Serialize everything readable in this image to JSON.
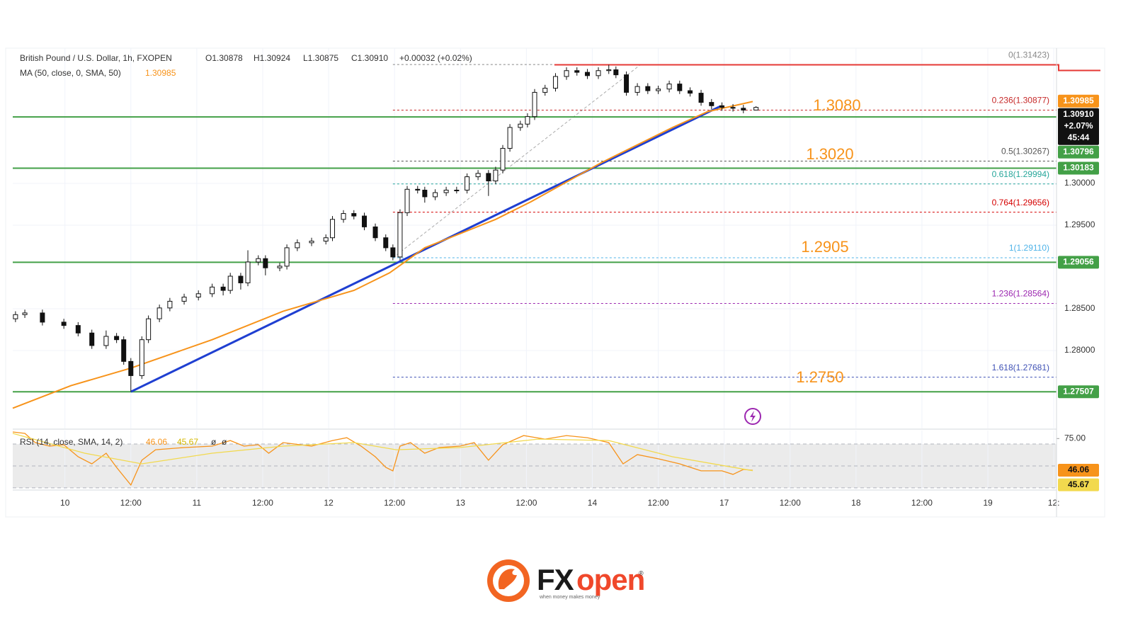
{
  "chart_data": {
    "type": "candlestick",
    "title": "British Pound / U.S. Dollar, 1h, FXOPEN",
    "ohlc": [
      "O1.30878",
      "H1.30924",
      "L1.30875",
      "C1.30910",
      "+0.00032 (+0.02%)"
    ],
    "x": [
      0.5,
      2.2,
      5.4,
      9.3,
      11.9,
      14.4,
      17.0,
      18.9,
      20.2,
      21.5,
      23.5,
      24.7,
      26.7,
      28.6,
      31.2,
      33.8,
      36.3,
      38.3,
      39.6,
      41.5,
      42.8,
      44.7,
      46.0,
      48.6,
      49.9,
      51.8,
      54.4,
      57.0,
      58.2,
      60.2,
      62.1,
      64.0,
      66.0,
      67.9,
      69.2,
      70.5,
      71.8,
      73.7,
      75.0,
      76.9,
      78.9,
      80.8,
      82.7,
      84.7,
      86.6,
      87.9,
      89.2,
      90.5,
      92.4,
      93.7,
      95.0,
      96.9,
      98.8,
      100.8,
      102.7,
      104.6,
      106.6,
      108.5,
      109.8,
      111.7,
      113.7,
      115.6,
      117.5,
      119.5,
      121.4,
      123.3,
      125.3,
      127.2,
      129.1,
      131.1,
      133.0,
      135.3
    ],
    "open": [
      1.2838,
      1.2843,
      1.2845,
      1.2834,
      1.283,
      1.2821,
      1.2806,
      1.2817,
      1.2813,
      1.2787,
      1.277,
      1.2813,
      1.2838,
      1.2851,
      1.2859,
      1.2864,
      1.2868,
      1.2876,
      1.2872,
      1.2889,
      1.2881,
      1.2906,
      1.291,
      1.2899,
      1.2901,
      1.2923,
      1.2929,
      1.2931,
      1.2935,
      1.2957,
      1.2964,
      1.2961,
      1.2948,
      1.2935,
      1.2923,
      1.2912,
      1.2965,
      1.2993,
      1.2992,
      1.2984,
      1.2989,
      1.2992,
      1.2992,
      1.3008,
      1.3012,
      1.3003,
      1.3016,
      1.3042,
      1.3067,
      1.3071,
      1.308,
      1.3109,
      1.3114,
      1.3128,
      1.3135,
      1.3133,
      1.3129,
      1.3135,
      1.3136,
      1.313,
      1.3109,
      1.3116,
      1.3111,
      1.3113,
      1.3119,
      1.3111,
      1.3108,
      1.3097,
      1.3093,
      1.3091,
      1.309,
      1.30878
    ],
    "high": [
      1.2847,
      1.2849,
      1.2849,
      1.2838,
      1.2834,
      1.2825,
      1.2824,
      1.2821,
      1.2817,
      1.2791,
      1.2817,
      1.2842,
      1.2855,
      1.2863,
      1.2868,
      1.2872,
      1.288,
      1.288,
      1.2893,
      1.2893,
      1.292,
      1.2914,
      1.2914,
      1.2905,
      1.2927,
      1.2933,
      1.2935,
      1.2939,
      1.2961,
      1.2968,
      1.2968,
      1.2965,
      1.2952,
      1.2939,
      1.2927,
      1.2969,
      1.2997,
      1.2997,
      1.2996,
      1.2993,
      1.2996,
      1.2996,
      1.3012,
      1.3016,
      1.3016,
      1.302,
      1.3046,
      1.3071,
      1.3075,
      1.3084,
      1.3113,
      1.3118,
      1.3132,
      1.3139,
      1.3139,
      1.3137,
      1.3139,
      1.3142,
      1.314,
      1.3134,
      1.312,
      1.312,
      1.3117,
      1.3123,
      1.3123,
      1.3115,
      1.3112,
      1.3101,
      1.3097,
      1.3095,
      1.3094,
      1.30924
    ],
    "low": [
      1.2834,
      1.2839,
      1.283,
      1.2826,
      1.2817,
      1.2802,
      1.2802,
      1.2809,
      1.2783,
      1.2751,
      1.2766,
      1.2809,
      1.2834,
      1.2847,
      1.2855,
      1.286,
      1.2864,
      1.2866,
      1.2868,
      1.2873,
      1.2877,
      1.2902,
      1.289,
      1.2895,
      1.2897,
      1.2919,
      1.2925,
      1.2927,
      1.2931,
      1.2953,
      1.2957,
      1.2944,
      1.2931,
      1.2919,
      1.2908,
      1.2908,
      1.2961,
      1.2988,
      1.2977,
      1.298,
      1.2985,
      1.2988,
      1.2988,
      1.3004,
      1.2985,
      1.2999,
      1.3012,
      1.3038,
      1.3063,
      1.3067,
      1.3076,
      1.3105,
      1.311,
      1.3124,
      1.3129,
      1.3125,
      1.3125,
      1.3131,
      1.3126,
      1.3105,
      1.3105,
      1.3107,
      1.3107,
      1.3109,
      1.3107,
      1.3104,
      1.3093,
      1.3089,
      1.3087,
      1.3086,
      1.3084,
      1.30875
    ],
    "close": [
      1.2843,
      1.2845,
      1.2834,
      1.283,
      1.2821,
      1.2806,
      1.2817,
      1.2813,
      1.2787,
      1.277,
      1.2813,
      1.2838,
      1.2851,
      1.2859,
      1.2864,
      1.2868,
      1.2876,
      1.2872,
      1.2889,
      1.2881,
      1.2906,
      1.291,
      1.2899,
      1.2901,
      1.2923,
      1.2929,
      1.2931,
      1.2935,
      1.2957,
      1.2964,
      1.2961,
      1.2948,
      1.2935,
      1.2923,
      1.2912,
      1.2965,
      1.2993,
      1.2992,
      1.2984,
      1.2989,
      1.2992,
      1.2992,
      1.3008,
      1.3012,
      1.3003,
      1.3016,
      1.3042,
      1.3067,
      1.3071,
      1.308,
      1.3109,
      1.3114,
      1.3128,
      1.3135,
      1.3133,
      1.3129,
      1.3135,
      1.3136,
      1.313,
      1.3109,
      1.3116,
      1.3111,
      1.3113,
      1.3119,
      1.3111,
      1.3108,
      1.3097,
      1.3093,
      1.3091,
      1.309,
      1.30878,
      1.3091
    ],
    "up_color": "#ffffff",
    "down_color": "#111111",
    "xlim": [
      0,
      190
    ],
    "xticks": [
      {
        "value": 9.5,
        "label": "10"
      },
      {
        "value": 21.5,
        "label": "12:00"
      },
      {
        "value": 33.5,
        "label": "11"
      },
      {
        "value": 45.5,
        "label": "12:00"
      },
      {
        "value": 57.5,
        "label": "12"
      },
      {
        "value": 69.5,
        "label": "12:00"
      },
      {
        "value": 81.5,
        "label": "13"
      },
      {
        "value": 93.5,
        "label": "12:00"
      },
      {
        "value": 105.5,
        "label": "14"
      },
      {
        "value": 117.5,
        "label": "12:00"
      },
      {
        "value": 129.5,
        "label": "17"
      },
      {
        "value": 141.5,
        "label": "12:00"
      },
      {
        "value": 153.5,
        "label": "18"
      },
      {
        "value": 165.5,
        "label": "12:00"
      },
      {
        "value": 177.5,
        "label": "19"
      },
      {
        "value": 189.5,
        "label": "12:"
      }
    ],
    "ylim": [
      1.27068,
      1.31619
    ],
    "yticks": [
      {
        "value": 1.3,
        "label": "1.30000"
      },
      {
        "value": 1.295,
        "label": "1.29500"
      },
      {
        "value": 1.285,
        "label": "1.28500"
      },
      {
        "value": 1.28,
        "label": "1.28000"
      }
    ],
    "grid": true,
    "ma": {
      "name": "MA (50, close, 0, SMA, 50)",
      "color": "#f7931a",
      "x": [
        0,
        10.6,
        21.5,
        36.3,
        49.2,
        62.1,
        68.6,
        75.0,
        87.9,
        94.3,
        107.2,
        120.1,
        126.5,
        134.7
      ],
      "values": [
        1.2731,
        1.2758,
        1.2779,
        1.2813,
        1.2847,
        1.2872,
        1.2893,
        1.2923,
        1.2957,
        1.2978,
        1.3025,
        1.3067,
        1.3086,
        1.3098
      ],
      "last": {
        "value": 1.30985,
        "label": "1.30985"
      }
    },
    "last_price": {
      "value": 1.3091,
      "label": "1.30910",
      "change": "+2.07%",
      "countdown": "45:44"
    },
    "trendline": {
      "x": [
        21.5,
        128.7
      ],
      "y": [
        1.27507,
        1.3092
      ],
      "color": "#1f3fd1"
    },
    "resistance": {
      "x": 98.6,
      "value": 1.3142,
      "color": "#e53935"
    },
    "levels": {
      "color": "#43a047",
      "items": [
        {
          "value": 1.30796,
          "label": "1.30796"
        },
        {
          "value": 1.30183,
          "label": "1.30183"
        },
        {
          "value": 1.29056,
          "label": "1.29056"
        },
        {
          "value": 1.27507,
          "label": "1.27507"
        }
      ]
    },
    "annotations": {
      "color": "#f7931a",
      "items": [
        "1.3080",
        "1.3020",
        "1.2905",
        "1.2750"
      ]
    },
    "fibonacci": {
      "anchors": {
        "x": [
          69.2,
          114.3
        ],
        "y": [
          1.2911,
          1.31423
        ]
      },
      "levels": [
        {
          "value": 1.31423,
          "label": "0(1.31423)",
          "color": "#888888"
        },
        {
          "value": 1.30877,
          "label": "0.236(1.30877)",
          "color": "#c62828"
        },
        {
          "value": 1.30267,
          "label": "0.5(1.30267)",
          "color": "#555555"
        },
        {
          "value": 1.29994,
          "label": "0.618(1.29994)",
          "color": "#26a69a"
        },
        {
          "value": 1.29656,
          "label": "0.764(1.29656)",
          "color": "#d50000"
        },
        {
          "value": 1.2911,
          "label": "1(1.29110)",
          "color": "#4fb3e8"
        },
        {
          "value": 1.28564,
          "label": "1.236(1.28564)",
          "color": "#9c27b0"
        },
        {
          "value": 1.27681,
          "label": "1.618(1.27681)",
          "color": "#3f51b5"
        }
      ]
    },
    "rsi": {
      "name": "RSI (14, close, SMA, 14, 2)",
      "extras": [
        "ø",
        "ø"
      ],
      "ylim": [
        28,
        82.3
      ],
      "yticks": [
        {
          "value": 75,
          "label": "75.00"
        }
      ],
      "band": [
        30,
        70
      ],
      "midline": 50,
      "series": [
        {
          "name": "RSI",
          "color": "#f7931a",
          "x": [
            0,
            2.2,
            4.1,
            6.7,
            9.3,
            11.9,
            14.4,
            17.0,
            18.9,
            21.5,
            23.5,
            26.0,
            31.2,
            36.3,
            39.6,
            42.1,
            44.7,
            46.6,
            49.2,
            54.4,
            58.2,
            60.8,
            63.4,
            66.0,
            67.9,
            69.2,
            70.5,
            72.4,
            75.0,
            77.6,
            81.4,
            84.0,
            86.6,
            89.2,
            93.0,
            96.9,
            100.8,
            104.6,
            108.5,
            111.1,
            113.7,
            117.5,
            121.4,
            125.3,
            129.1,
            131.1,
            133.0,
            134.7
          ],
          "values": [
            81.0,
            79.7,
            71.3,
            68.1,
            69.4,
            58.4,
            51.9,
            61.6,
            48.7,
            32.6,
            55.2,
            64.8,
            66.8,
            68.1,
            73.2,
            68.1,
            69.4,
            61.6,
            71.3,
            68.1,
            73.2,
            75.8,
            68.1,
            58.4,
            48.7,
            45.5,
            68.1,
            71.3,
            61.6,
            66.8,
            68.1,
            71.3,
            55.2,
            69.4,
            77.7,
            74.5,
            77.7,
            75.8,
            71.3,
            51.9,
            60.3,
            56.5,
            51.9,
            45.5,
            45.5,
            42.3,
            46.8,
            46.06
          ],
          "last_label": "46.06"
        },
        {
          "name": "RSI-based MA",
          "color": "#f2d94e",
          "x": [
            0,
            13.1,
            23.5,
            36.3,
            49.2,
            62.1,
            69.8,
            81.4,
            95.6,
            108.5,
            120.1,
            134.7
          ],
          "values": [
            79.7,
            61.6,
            51.9,
            61.6,
            68.1,
            71.3,
            64.8,
            66.8,
            74.5,
            73.2,
            58.4,
            45.67
          ],
          "last_label": "45.67"
        }
      ]
    }
  },
  "logo": {
    "brand_a": "FX",
    "brand_b": "open",
    "mark": "®",
    "tagline": "when money makes money"
  }
}
